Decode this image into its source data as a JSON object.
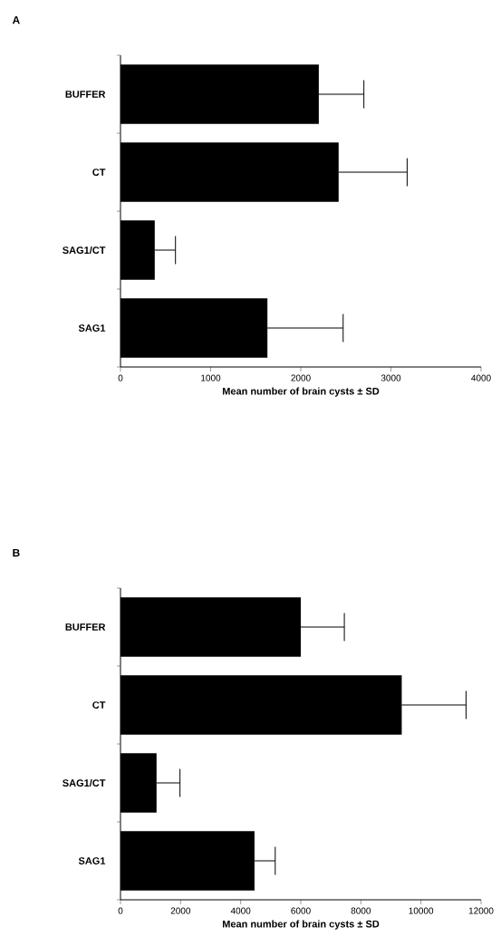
{
  "chart_data": [
    {
      "type": "bar",
      "orientation": "horizontal",
      "title": "A",
      "categories": [
        "BUFFER",
        "CT",
        "SAG1/CT",
        "SAG1"
      ],
      "values": [
        2200,
        2420,
        380,
        1630
      ],
      "errors": [
        [
          2200,
          2700
        ],
        [
          2420,
          3180
        ],
        [
          380,
          610
        ],
        [
          1630,
          2470
        ]
      ],
      "color": "#000000",
      "xlabel": "Mean number of brain cysts ± SD",
      "xlim": [
        0,
        4000
      ],
      "xticks": [
        0,
        1000,
        2000,
        3000,
        4000
      ],
      "grid": false
    },
    {
      "type": "bar",
      "orientation": "horizontal",
      "title": "B",
      "categories": [
        "BUFFER",
        "CT",
        "SAG1/CT",
        "SAG1"
      ],
      "values": [
        6000,
        9360,
        1200,
        4460
      ],
      "errors": [
        [
          6000,
          7450
        ],
        [
          9360,
          11500
        ],
        [
          1200,
          1980
        ],
        [
          4460,
          5150
        ]
      ],
      "color": "#000000",
      "xlabel": "Mean number of brain cysts ± SD",
      "xlim": [
        0,
        12000
      ],
      "xticks": [
        0,
        2000,
        4000,
        6000,
        8000,
        10000,
        12000
      ],
      "grid": false
    }
  ]
}
